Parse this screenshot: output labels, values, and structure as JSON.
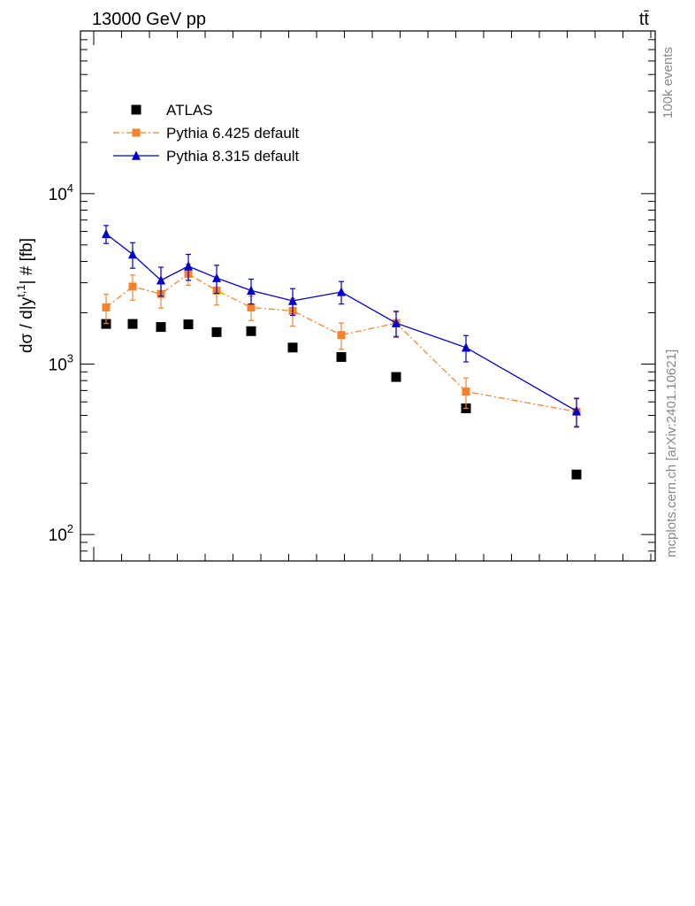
{
  "header": {
    "left": "13000 GeV pp",
    "right": "tt̄"
  },
  "side_labels": {
    "events": "100k events",
    "source": "mcplots.cern.ch [arXiv:2401.10621]"
  },
  "colors": {
    "atlas": "#000000",
    "pythia6": "#f5822a",
    "pythia8": "#0000cc",
    "side_text": "#888888"
  },
  "chart_data": {
    "type": "scatter",
    "title": "",
    "xlabel": "",
    "ylabel": "dσ / d|y^{t,1}| # [{fb}]",
    "yscale": "log",
    "ylim": [
      70,
      90000
    ],
    "y_ticks": [
      {
        "value": 100,
        "label": "10^2"
      },
      {
        "value": 1000,
        "label": "10^3"
      },
      {
        "value": 10000,
        "label": "10^4"
      }
    ],
    "x_bins": [
      1,
      2,
      3,
      4,
      5,
      6,
      7,
      8,
      9,
      10,
      11
    ],
    "legend_position": "top-left",
    "series": [
      {
        "name": "ATLAS",
        "style": "markers",
        "marker": "square",
        "values": [
          1720,
          1720,
          1650,
          1710,
          1540,
          1560,
          1250,
          1100,
          840,
          550,
          225
        ]
      },
      {
        "name": "Pythia 6.425 default",
        "style": "dash-dot-line",
        "marker": "square",
        "values": [
          2150,
          2850,
          2580,
          3380,
          2700,
          2150,
          2050,
          1480,
          1740,
          690,
          525
        ],
        "errors": [
          420,
          480,
          450,
          480,
          480,
          350,
          380,
          260,
          280,
          140,
          100
        ]
      },
      {
        "name": "Pythia 8.315 default",
        "style": "solid-line",
        "marker": "triangle",
        "values": [
          5800,
          4400,
          3100,
          3750,
          3200,
          2700,
          2350,
          2650,
          1740,
          1250,
          530
        ],
        "errors": [
          700,
          750,
          600,
          650,
          600,
          450,
          420,
          400,
          300,
          220,
          100
        ]
      }
    ]
  }
}
